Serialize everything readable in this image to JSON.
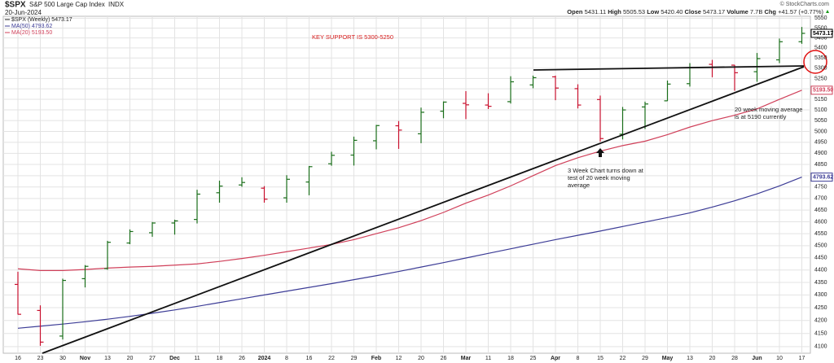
{
  "chart_data": {
    "type": "ohlc",
    "ticker": "$SPX",
    "title": "S&P 500 Large Cap Index",
    "exchange": "INDX",
    "date": "20-Jun-2024",
    "source": "© StockCharts.com",
    "categories": [
      "16",
      "23",
      "30",
      "Nov",
      "13",
      "20",
      "27",
      "Dec",
      "11",
      "18",
      "26",
      "2024",
      "8",
      "16",
      "22",
      "29",
      "Feb",
      "12",
      "20",
      "26",
      "Mar",
      "11",
      "18",
      "25",
      "Apr",
      "8",
      "15",
      "22",
      "29",
      "May",
      "13",
      "20",
      "28",
      "Jun",
      "10",
      "17"
    ],
    "bold_categories": [
      "Nov",
      "Dec",
      "2024",
      "Feb",
      "Mar",
      "Apr",
      "May",
      "Jun"
    ],
    "ohlc": {
      "name": "$SPX (Weekly)",
      "up_color": "#1a6e1a",
      "down_color": "#c8102e",
      "open": [
        4342,
        4239,
        4140,
        4365,
        4406,
        4511,
        4554,
        4595,
        4610,
        4725,
        4759,
        4745,
        4703,
        4772,
        4853,
        4892,
        4957,
        5026,
        4989,
        5094,
        5131,
        5123,
        5139,
        5219,
        5258,
        5201,
        5149,
        4987,
        5114,
        5143,
        5225,
        5319,
        5315,
        5283,
        5341,
        5431.11
      ],
      "high": [
        4393,
        4259,
        4365,
        4420,
        4520,
        4568,
        4599,
        4609,
        4738,
        4778,
        4793,
        4754,
        4802,
        4843,
        4907,
        4976,
        5030,
        5048,
        5111,
        5140,
        5189,
        5179,
        5261,
        5264,
        5264,
        5222,
        5168,
        5114,
        5139,
        5240,
        5325,
        5341,
        5316,
        5375,
        5447,
        5505.53
      ],
      "low": [
        4223,
        4103,
        4127,
        4330,
        4401,
        4506,
        4537,
        4546,
        4593,
        4682,
        4751,
        4682,
        4682,
        4714,
        4844,
        4845,
        4918,
        4920,
        4946,
        5061,
        5057,
        5104,
        5130,
        5203,
        5146,
        5107,
        4953,
        4963,
        5011,
        5142,
        5211,
        5256,
        5191,
        5234,
        5325,
        5420.4
      ],
      "low_last_label": "5420.40",
      "close": [
        4224,
        4117,
        4358,
        4415,
        4514,
        4559,
        4595,
        4604,
        4719,
        4754,
        4770,
        4697,
        4784,
        4840,
        4891,
        4959,
        5027,
        5006,
        5089,
        5137,
        5124,
        5117,
        5234,
        5254,
        5204,
        5123,
        4967,
        5100,
        5128,
        5223,
        5303,
        5305,
        5278,
        5347,
        5431,
        5473.17
      ]
    },
    "series": [
      {
        "name": "MA(50)",
        "color": "#3c3c96",
        "values": [
          4170,
          4178,
          4186,
          4195,
          4205,
          4216,
          4228,
          4241,
          4255,
          4270,
          4285,
          4300,
          4315,
          4330,
          4345,
          4361,
          4377,
          4394,
          4412,
          4430,
          4449,
          4468,
          4487,
          4506,
          4525,
          4543,
          4561,
          4580,
          4599,
          4618,
          4638,
          4663,
          4690,
          4720,
          4755,
          4793.62
        ]
      },
      {
        "name": "MA(20)",
        "color": "#d0405a",
        "values": [
          4405,
          4398,
          4398,
          4402,
          4408,
          4412,
          4415,
          4420,
          4425,
          4435,
          4447,
          4460,
          4475,
          4490,
          4505,
          4525,
          4550,
          4575,
          4605,
          4640,
          4680,
          4715,
          4755,
          4800,
          4845,
          4880,
          4910,
          4935,
          4955,
          4985,
          5020,
          5050,
          5075,
          5105,
          5150,
          5193.5
        ],
        "last_label": "5193.50"
      }
    ],
    "stat_labels": [
      "Open",
      "High",
      "Low",
      "Close",
      "Volume",
      "Chg"
    ],
    "volume": "7.7B",
    "change": "+41.57 (+0.77%)",
    "ylim": [
      4075,
      5560
    ],
    "yticks": [
      4100,
      4150,
      4200,
      4250,
      4300,
      4350,
      4400,
      4450,
      4500,
      4550,
      4600,
      4650,
      4700,
      4750,
      4800,
      4850,
      4900,
      4950,
      5000,
      5050,
      5100,
      5150,
      5200,
      5250,
      5300,
      5350,
      5400,
      5450,
      5500,
      5550
    ],
    "log_scale": true,
    "grid": true,
    "annotations": [
      {
        "lines": [
          "KEY SUPPORT IS 5300-5250"
        ],
        "color": "#d81e1e"
      },
      {
        "lines": [
          "20 week moving average",
          "is at 5190 currently"
        ],
        "color": "#222222"
      },
      {
        "lines": [
          "3 Week Chart turns down at",
          "test of 20 week moving",
          "average"
        ],
        "color": "#222222"
      }
    ]
  }
}
